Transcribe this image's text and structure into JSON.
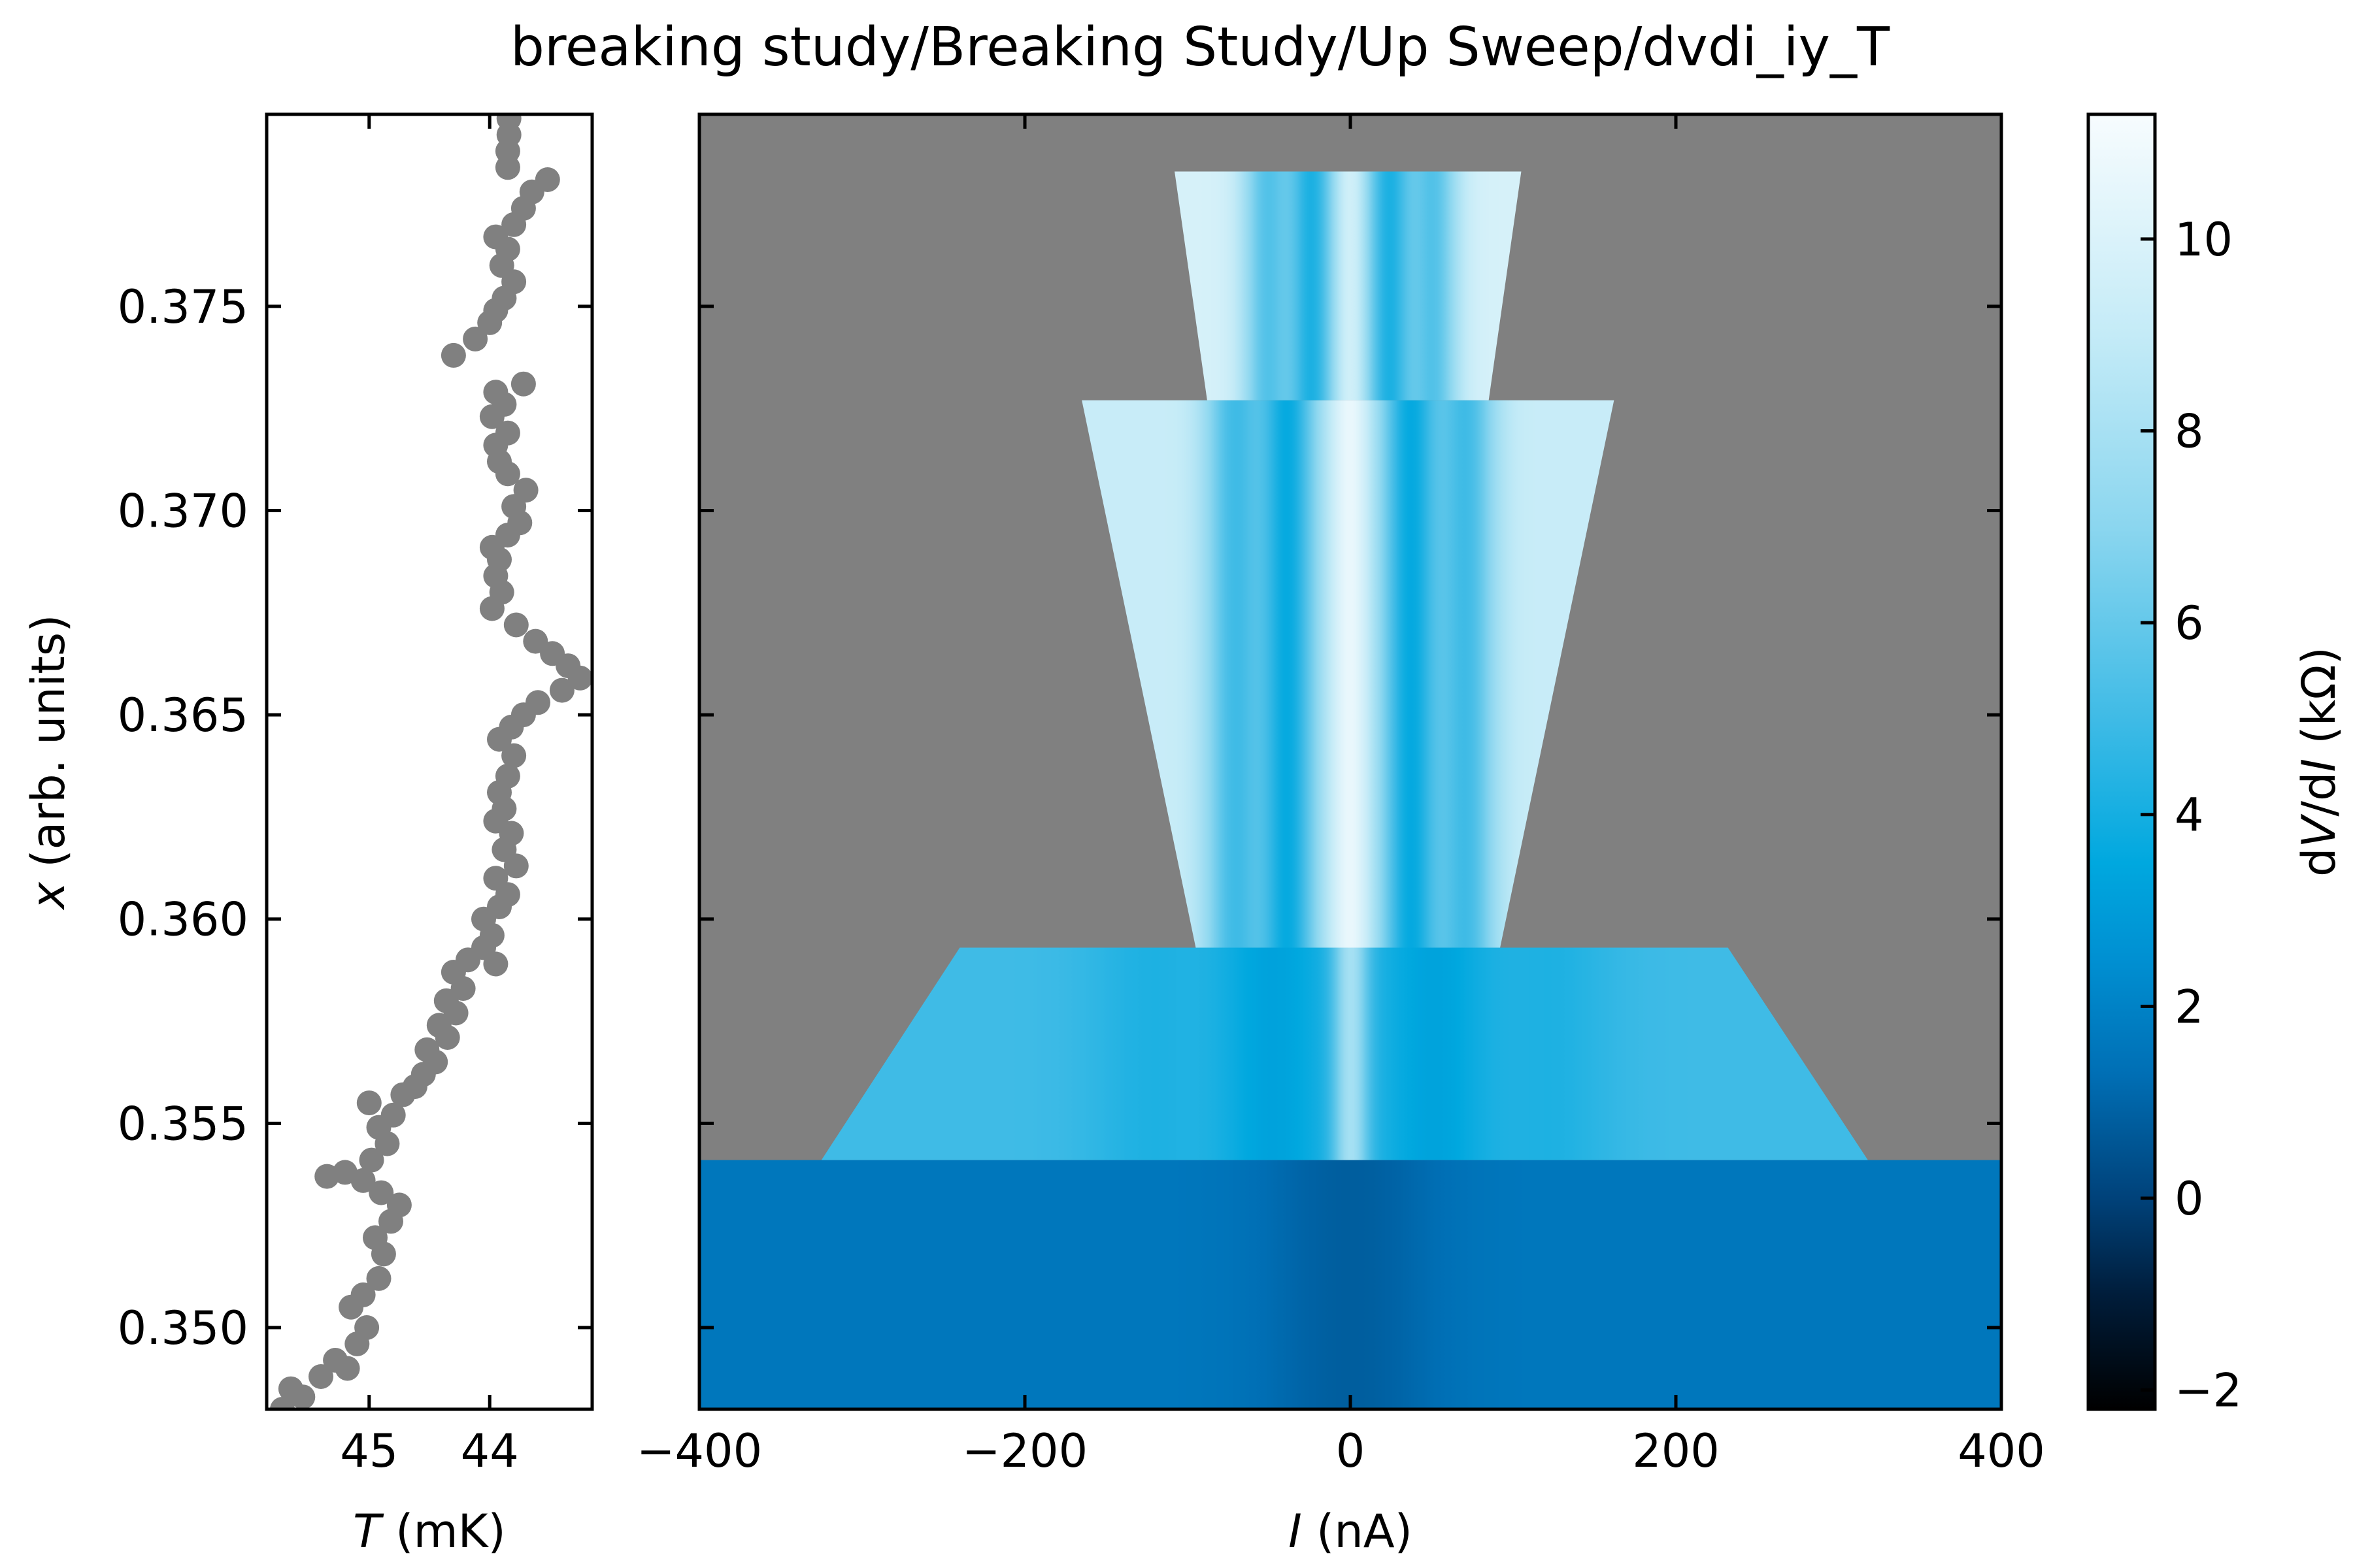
{
  "title": "breaking study/Breaking Study/Up Sweep/dvdi_iy_T",
  "chart_data": [
    {
      "type": "scatter",
      "panel": "left",
      "xlabel_sym": "T",
      "xlabel_unit": " (mK)",
      "ylabel_sym": "x",
      "ylabel_unit": " (arb. units)",
      "xlim": [
        45.85,
        43.15
      ],
      "x_inverted": true,
      "ylim": [
        0.348,
        0.3797
      ],
      "xticks": [
        45,
        44
      ],
      "xtick_labels": [
        "45",
        "44"
      ],
      "yticks": [
        0.35,
        0.355,
        0.36,
        0.365,
        0.37,
        0.375
      ],
      "ytick_labels": [
        "0.350",
        "0.355",
        "0.360",
        "0.365",
        "0.370",
        "0.375"
      ],
      "marker_color": "#808080",
      "points": [
        [
          45.72,
          0.348
        ],
        [
          45.65,
          0.3485
        ],
        [
          45.55,
          0.3483
        ],
        [
          45.4,
          0.3488
        ],
        [
          45.28,
          0.3492
        ],
        [
          45.18,
          0.349
        ],
        [
          45.1,
          0.3496
        ],
        [
          45.02,
          0.35
        ],
        [
          45.15,
          0.3505
        ],
        [
          45.05,
          0.3508
        ],
        [
          44.92,
          0.3512
        ],
        [
          44.88,
          0.3518
        ],
        [
          44.95,
          0.3522
        ],
        [
          44.82,
          0.3526
        ],
        [
          44.75,
          0.353
        ],
        [
          44.9,
          0.3533
        ],
        [
          45.05,
          0.3536
        ],
        [
          45.35,
          0.3537
        ],
        [
          45.2,
          0.3538
        ],
        [
          44.98,
          0.3541
        ],
        [
          44.85,
          0.3545
        ],
        [
          44.92,
          0.3549
        ],
        [
          44.8,
          0.3552
        ],
        [
          45.0,
          0.3555
        ],
        [
          44.72,
          0.3557
        ],
        [
          44.62,
          0.3559
        ],
        [
          44.55,
          0.3562
        ],
        [
          44.45,
          0.3565
        ],
        [
          44.52,
          0.3568
        ],
        [
          44.35,
          0.3571
        ],
        [
          44.42,
          0.3574
        ],
        [
          44.28,
          0.3577
        ],
        [
          44.36,
          0.358
        ],
        [
          44.22,
          0.3583
        ],
        [
          44.3,
          0.3587
        ],
        [
          44.18,
          0.359
        ],
        [
          43.95,
          0.3589
        ],
        [
          44.05,
          0.3593
        ],
        [
          43.98,
          0.3596
        ],
        [
          44.05,
          0.36
        ],
        [
          43.92,
          0.3603
        ],
        [
          43.85,
          0.3606
        ],
        [
          43.95,
          0.361
        ],
        [
          43.78,
          0.3613
        ],
        [
          43.88,
          0.3617
        ],
        [
          43.82,
          0.3621
        ],
        [
          43.95,
          0.3624
        ],
        [
          43.88,
          0.3627
        ],
        [
          43.92,
          0.3631
        ],
        [
          43.85,
          0.3635
        ],
        [
          43.8,
          0.364
        ],
        [
          43.92,
          0.3644
        ],
        [
          43.82,
          0.3647
        ],
        [
          43.72,
          0.365
        ],
        [
          43.6,
          0.3653
        ],
        [
          43.4,
          0.3656
        ],
        [
          43.25,
          0.3659
        ],
        [
          43.35,
          0.3662
        ],
        [
          43.48,
          0.3665
        ],
        [
          43.62,
          0.3668
        ],
        [
          43.78,
          0.3672
        ],
        [
          43.98,
          0.3676
        ],
        [
          43.9,
          0.368
        ],
        [
          43.95,
          0.3684
        ],
        [
          43.92,
          0.3688
        ],
        [
          43.98,
          0.3691
        ],
        [
          43.85,
          0.3694
        ],
        [
          43.75,
          0.3697
        ],
        [
          43.8,
          0.3701
        ],
        [
          43.7,
          0.3705
        ],
        [
          43.85,
          0.3709
        ],
        [
          43.92,
          0.3712
        ],
        [
          43.95,
          0.3716
        ],
        [
          43.85,
          0.3719
        ],
        [
          43.98,
          0.3723
        ],
        [
          43.88,
          0.3726
        ],
        [
          43.95,
          0.3729
        ],
        [
          43.72,
          0.3731
        ],
        [
          44.3,
          0.3738
        ],
        [
          44.12,
          0.3742
        ],
        [
          44.0,
          0.3746
        ],
        [
          43.95,
          0.3749
        ],
        [
          43.88,
          0.3752
        ],
        [
          43.8,
          0.3756
        ],
        [
          43.9,
          0.376
        ],
        [
          43.85,
          0.3764
        ],
        [
          43.95,
          0.3767
        ],
        [
          43.8,
          0.377
        ],
        [
          43.72,
          0.3774
        ],
        [
          43.65,
          0.3778
        ],
        [
          43.52,
          0.3781
        ],
        [
          43.85,
          0.3784
        ],
        [
          43.85,
          0.3788
        ],
        [
          43.84,
          0.3792
        ],
        [
          43.84,
          0.3796
        ]
      ]
    },
    {
      "type": "heatmap",
      "panel": "main",
      "xlabel_sym": "I",
      "xlabel_unit": " (nA)",
      "xlim": [
        -400,
        400
      ],
      "ylim": [
        0.348,
        0.3797
      ],
      "xticks": [
        -400,
        -200,
        0,
        200,
        400
      ],
      "xtick_labels": [
        "−400",
        "−200",
        "0",
        "200",
        "400"
      ],
      "yticks": [
        0.35,
        0.355,
        0.36,
        0.365,
        0.37,
        0.375
      ],
      "background_color": "#808080",
      "regions": [
        {
          "y0": 0.348,
          "y1": 0.3541,
          "x0_bottom": -400,
          "x1_bottom": 400,
          "x0_top": -400,
          "x1_top": 400,
          "base": 1.6,
          "features": [
            {
              "x": 0,
              "width": 40,
              "value": 0.8
            }
          ]
        },
        {
          "y0": 0.3541,
          "y1": 0.3593,
          "x0_bottom": -325,
          "x1_bottom": 318,
          "x0_top": -240,
          "x1_top": 232,
          "base": 5.0,
          "features": [
            {
              "x": 0,
              "width": 8,
              "value": 11
            },
            {
              "x": -50,
              "width": 30,
              "value": 3.2
            },
            {
              "x": 55,
              "width": 30,
              "value": 3.2
            },
            {
              "x": -120,
              "width": 30,
              "value": 4.2
            },
            {
              "x": 120,
              "width": 30,
              "value": 4.2
            }
          ]
        },
        {
          "y0": 0.3593,
          "y1": 0.3727,
          "x0_bottom": -95,
          "x1_bottom": 92,
          "x0_top": -165,
          "x1_top": 162,
          "base": 9.2,
          "features": [
            {
              "x": 0,
              "width": 8,
              "value": 11
            },
            {
              "x": -40,
              "width": 14,
              "value": 3.5
            },
            {
              "x": 38,
              "width": 14,
              "value": 3.5
            },
            {
              "x": -70,
              "width": 14,
              "value": 5.0
            },
            {
              "x": 70,
              "width": 14,
              "value": 5.0
            }
          ]
        },
        {
          "y0": 0.3727,
          "y1": 0.3783,
          "x0_bottom": -88,
          "x1_bottom": 85,
          "x0_top": -108,
          "x1_top": 105,
          "base": 9.8,
          "features": [
            {
              "x": 0,
              "width": 8,
              "value": 11
            },
            {
              "x": -25,
              "width": 12,
              "value": 4.0
            },
            {
              "x": 25,
              "width": 12,
              "value": 4.0
            },
            {
              "x": -50,
              "width": 12,
              "value": 5.5
            },
            {
              "x": 50,
              "width": 12,
              "value": 5.5
            }
          ]
        }
      ]
    },
    {
      "type": "colorbar",
      "panel": "colorbar",
      "label_sym_d1": "d",
      "label_sym_v": "V",
      "label_mid": "/d",
      "label_sym_i": "I",
      "label_unit": " (kΩ)",
      "vlim": [
        -2.2,
        11.3
      ],
      "ticks": [
        -2,
        0,
        2,
        4,
        6,
        8,
        10
      ],
      "tick_labels": [
        "−2",
        "0",
        "2",
        "4",
        "6",
        "8",
        "10"
      ],
      "colormap": [
        [
          -2.2,
          "#000000"
        ],
        [
          -1.0,
          "#001d3b"
        ],
        [
          0.0,
          "#00427a"
        ],
        [
          1.3,
          "#006fb5"
        ],
        [
          2.5,
          "#0090d2"
        ],
        [
          3.5,
          "#00a8df"
        ],
        [
          5.0,
          "#3fbbe6"
        ],
        [
          7.0,
          "#8bd6ef"
        ],
        [
          9.0,
          "#c4ebf7"
        ],
        [
          11.3,
          "#f7fcfe"
        ]
      ]
    }
  ]
}
